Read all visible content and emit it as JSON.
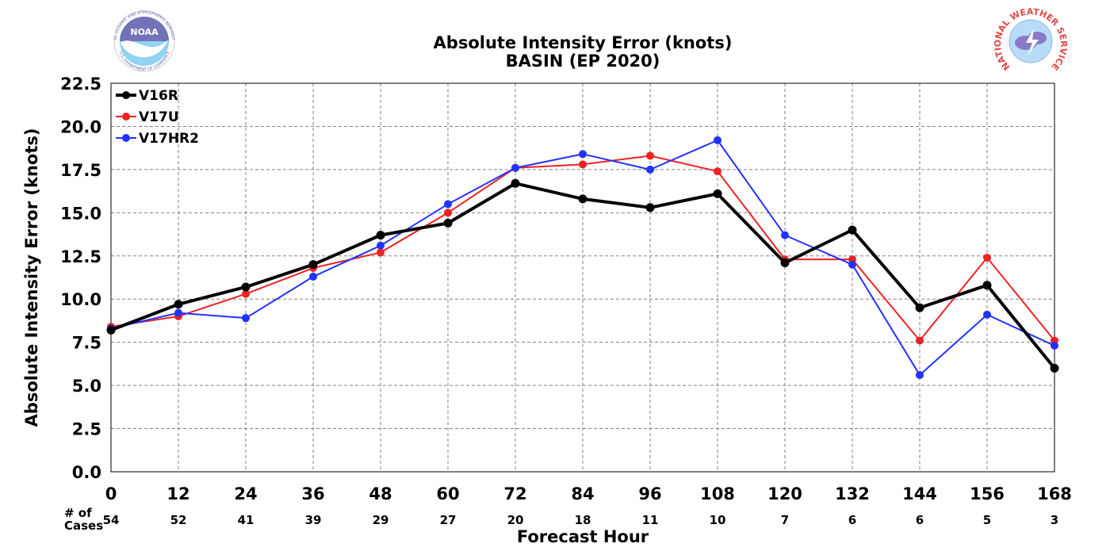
{
  "logos": {
    "noaa": {
      "text": "NOAA",
      "ring_top": "NATIONAL OCEANIC AND ATMOSPHERIC ADMINISTRATION",
      "ring_bottom": "U.S. DEPARTMENT OF COMMERCE"
    },
    "nws": {
      "ring_top": "NATIONAL WEATHER SERVICE"
    }
  },
  "chart_data": {
    "type": "line",
    "title": "Absolute Intensity Error (knots)",
    "subtitle": "BASIN (EP 2020)",
    "xlabel": "Forecast Hour",
    "ylabel": "Absolute Intensity Error (knots)",
    "x": [
      0,
      12,
      24,
      36,
      48,
      60,
      72,
      84,
      96,
      108,
      120,
      132,
      144,
      156,
      168
    ],
    "xlim": [
      0,
      168
    ],
    "ylim": [
      0,
      22.5
    ],
    "yticks": [
      "0.0",
      "2.5",
      "5.0",
      "7.5",
      "10.0",
      "12.5",
      "15.0",
      "17.5",
      "20.0",
      "22.5"
    ],
    "grid": true,
    "legend_position": "top-left",
    "cases_label": [
      "# of",
      "Cases"
    ],
    "cases": [
      54,
      52,
      41,
      39,
      29,
      27,
      20,
      18,
      11,
      10,
      7,
      6,
      6,
      5,
      3
    ],
    "series": [
      {
        "name": "V16R",
        "color": "#000000",
        "width": "thick",
        "values": [
          8.2,
          9.7,
          10.7,
          12.0,
          13.7,
          14.4,
          16.7,
          15.8,
          15.3,
          16.1,
          12.1,
          14.0,
          9.5,
          10.8,
          6.0
        ]
      },
      {
        "name": "V17U",
        "color": "#ee2222",
        "width": "thin",
        "values": [
          8.4,
          9.0,
          10.3,
          11.8,
          12.7,
          15.0,
          17.6,
          17.8,
          18.3,
          17.4,
          12.3,
          12.3,
          7.6,
          12.4,
          7.6
        ]
      },
      {
        "name": "V17HR2",
        "color": "#2233ff",
        "width": "thin",
        "values": [
          8.3,
          9.2,
          8.9,
          11.3,
          13.1,
          15.5,
          17.6,
          18.4,
          17.5,
          19.2,
          13.7,
          12.0,
          5.6,
          9.1,
          7.3
        ]
      }
    ]
  }
}
